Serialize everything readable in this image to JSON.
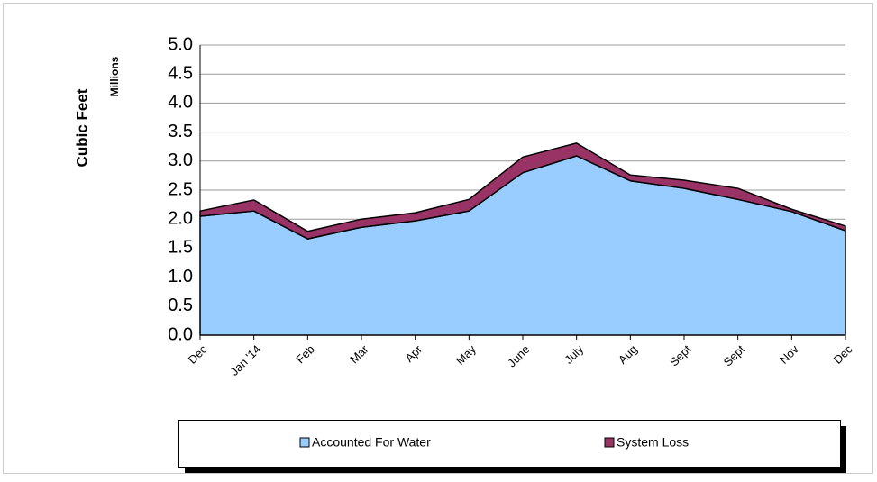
{
  "chart_data": {
    "type": "stacked_area",
    "y_label": "Cubic Feet",
    "y_unit_label": "Millions",
    "categories": [
      "Dec",
      "Jan '14",
      "Feb",
      "Mar",
      "Apr",
      "May",
      "June",
      "July",
      "Aug",
      "Sept",
      "Sept",
      "Nov",
      "Dec"
    ],
    "series": [
      {
        "name": "Accounted For Water",
        "color": "#99ccff",
        "values": [
          2.05,
          2.14,
          1.66,
          1.86,
          1.97,
          2.14,
          2.8,
          3.09,
          2.66,
          2.53,
          2.34,
          2.13,
          1.8
        ]
      },
      {
        "name": "System Loss",
        "color": "#993366",
        "values": [
          0.09,
          0.19,
          0.13,
          0.14,
          0.14,
          0.2,
          0.27,
          0.22,
          0.1,
          0.14,
          0.19,
          0.04,
          0.08
        ]
      }
    ],
    "ylim": [
      0,
      5
    ],
    "yticks": [
      {
        "value": 0,
        "label": "0.0"
      },
      {
        "value": 0.5,
        "label": "0.5"
      },
      {
        "value": 1,
        "label": "1.0"
      },
      {
        "value": 1.5,
        "label": "1.5"
      },
      {
        "value": 2,
        "label": "2.0"
      },
      {
        "value": 2.5,
        "label": "2.5"
      },
      {
        "value": 3,
        "label": "3.0"
      },
      {
        "value": 3.5,
        "label": "3.5"
      },
      {
        "value": 4,
        "label": "4.0"
      },
      {
        "value": 4.5,
        "label": "4.5"
      },
      {
        "value": 5,
        "label": "5.0"
      }
    ],
    "grid": true
  }
}
